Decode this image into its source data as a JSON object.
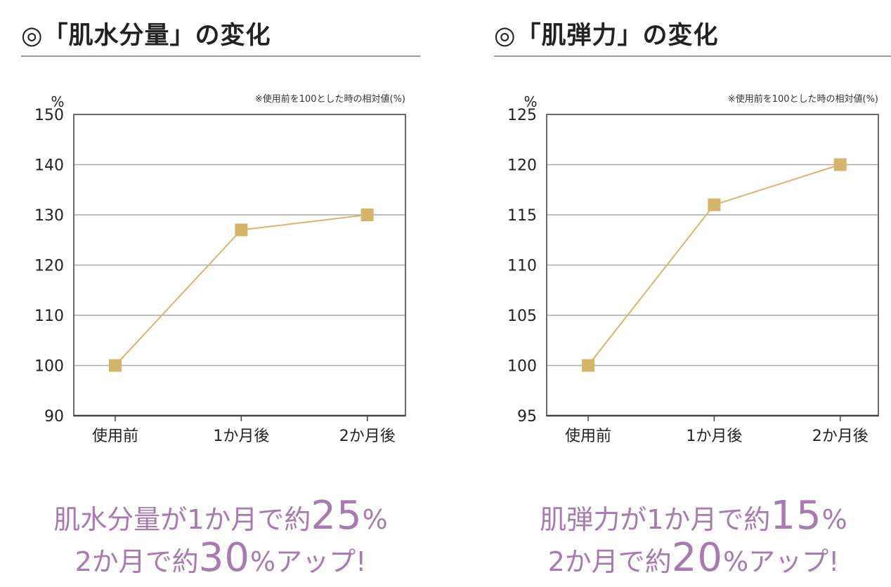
{
  "panels": [
    {
      "title": "◎「肌水分量」の変化",
      "summary": {
        "line1": {
          "prefix": "肌水分量が1か月で約",
          "big": "25",
          "suffix": "%"
        },
        "line2": {
          "prefix": "2か月で約",
          "big": "30",
          "suffix": "%アップ!"
        }
      }
    },
    {
      "title": "◎「肌弾力」の変化",
      "summary": {
        "line1": {
          "prefix": "肌弾力が1か月で約",
          "big": "15",
          "suffix": "%"
        },
        "line2": {
          "prefix": "2か月で約",
          "big": "20",
          "suffix": "%アップ!"
        }
      }
    }
  ],
  "chart_data": [
    {
      "type": "line",
      "title": "◎「肌水分量」の変化",
      "ylabel": "%",
      "note": "※使用前を100とした時の相対値(%)",
      "categories": [
        "使用前",
        "1か月後",
        "2か月後"
      ],
      "series": [
        {
          "values": [
            100,
            127,
            130
          ]
        }
      ],
      "ylim": [
        90,
        150
      ],
      "yticks": [
        90,
        100,
        110,
        120,
        130,
        140,
        150
      ],
      "grid": true,
      "line_color": "#d8b56a",
      "marker_color": "#d4b56a"
    },
    {
      "type": "line",
      "title": "◎「肌弾力」の変化",
      "ylabel": "%",
      "note": "※使用前を100とした時の相対値(%)",
      "categories": [
        "使用前",
        "1か月後",
        "2か月後"
      ],
      "series": [
        {
          "values": [
            100,
            116,
            120
          ]
        }
      ],
      "ylim": [
        95,
        125
      ],
      "yticks": [
        95,
        100,
        105,
        110,
        115,
        120,
        125
      ],
      "grid": true,
      "line_color": "#d8b56a",
      "marker_color": "#d4b56a"
    }
  ]
}
